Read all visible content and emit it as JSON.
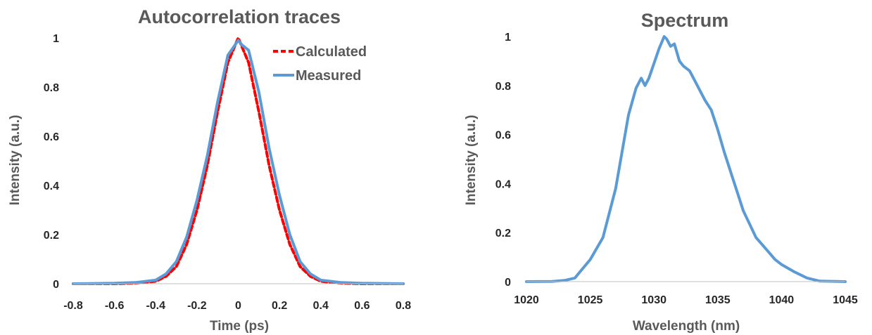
{
  "chart_data": [
    {
      "type": "line",
      "title": "Autocorrelation traces",
      "xlabel": "Time (ps)",
      "ylabel": "Intensity (a.u.)",
      "xlim": [
        -0.8,
        0.8
      ],
      "ylim": [
        0,
        1
      ],
      "xticks": [
        "-0.8",
        "-0.6",
        "-0.4",
        "-0.2",
        "0",
        "0.2",
        "0.4",
        "0.6",
        "0.8"
      ],
      "yticks": [
        "0",
        "0.2",
        "0.4",
        "0.6",
        "0.8",
        "1"
      ],
      "grid": false,
      "legend_position": "top-right",
      "series": [
        {
          "name": "Calculated",
          "color": "#ff0000",
          "style": "dashed",
          "x": [
            -0.8,
            -0.6,
            -0.5,
            -0.4,
            -0.35,
            -0.3,
            -0.25,
            -0.2,
            -0.15,
            -0.1,
            -0.05,
            0,
            0.05,
            0.1,
            0.15,
            0.2,
            0.25,
            0.3,
            0.35,
            0.4,
            0.5,
            0.6,
            0.8
          ],
          "y": [
            0,
            0,
            0.002,
            0.01,
            0.03,
            0.07,
            0.16,
            0.3,
            0.48,
            0.7,
            0.9,
            1.0,
            0.9,
            0.7,
            0.48,
            0.3,
            0.16,
            0.07,
            0.03,
            0.01,
            0.002,
            0,
            0
          ]
        },
        {
          "name": "Measured",
          "color": "#5b9bd5",
          "style": "solid",
          "x": [
            -0.8,
            -0.6,
            -0.5,
            -0.4,
            -0.35,
            -0.3,
            -0.25,
            -0.2,
            -0.15,
            -0.1,
            -0.05,
            0,
            0.02,
            0.05,
            0.1,
            0.15,
            0.2,
            0.25,
            0.3,
            0.35,
            0.4,
            0.5,
            0.6,
            0.8
          ],
          "y": [
            0,
            0.002,
            0.005,
            0.015,
            0.04,
            0.09,
            0.19,
            0.34,
            0.52,
            0.74,
            0.93,
            0.99,
            0.97,
            0.95,
            0.78,
            0.55,
            0.36,
            0.2,
            0.09,
            0.04,
            0.015,
            0.005,
            0.002,
            0
          ]
        }
      ]
    },
    {
      "type": "line",
      "title": "Spectrum",
      "xlabel": "Wavelength (nm)",
      "ylabel": "Intensity (a.u.)",
      "xlim": [
        1020,
        1045
      ],
      "ylim": [
        0,
        1
      ],
      "xticks": [
        "1020",
        "1025",
        "1030",
        "1035",
        "1040",
        "1045"
      ],
      "yticks": [
        "0",
        "0.2",
        "0.4",
        "0.6",
        "0.8",
        "1"
      ],
      "grid": false,
      "series": [
        {
          "color": "#5b9bd5",
          "style": "solid",
          "x": [
            1020,
            1022,
            1023,
            1023.8,
            1024.2,
            1025,
            1026,
            1027,
            1028,
            1028.6,
            1029,
            1029.3,
            1029.6,
            1030,
            1030.4,
            1030.8,
            1031,
            1031.3,
            1031.6,
            1032,
            1032.3,
            1032.8,
            1033.3,
            1034,
            1034.5,
            1035,
            1035.5,
            1036,
            1036.5,
            1037,
            1038,
            1039,
            1039.5,
            1040,
            1041,
            1042,
            1043,
            1045
          ],
          "y": [
            0,
            0.001,
            0.005,
            0.015,
            0.04,
            0.09,
            0.18,
            0.38,
            0.68,
            0.79,
            0.83,
            0.8,
            0.83,
            0.89,
            0.95,
            1.0,
            0.99,
            0.96,
            0.97,
            0.9,
            0.88,
            0.86,
            0.81,
            0.74,
            0.7,
            0.62,
            0.53,
            0.45,
            0.37,
            0.29,
            0.18,
            0.12,
            0.09,
            0.07,
            0.04,
            0.015,
            0.002,
            0
          ]
        }
      ]
    }
  ]
}
